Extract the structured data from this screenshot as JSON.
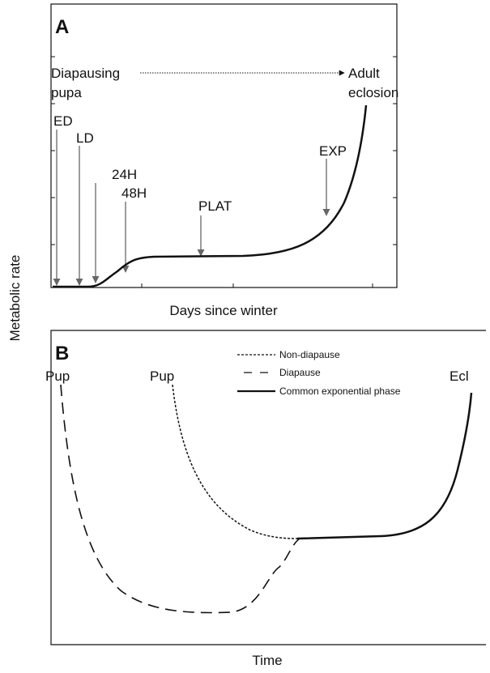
{
  "y_axis_label": "Metabolic rate",
  "panel_a": {
    "label": "A",
    "start_lines": [
      "Diapausing",
      "pupa"
    ],
    "end_lines": [
      "Adult",
      "eclosion"
    ],
    "markers": [
      "ED",
      "LD",
      "24H",
      "48H",
      "PLAT",
      "EXP"
    ],
    "x_axis_label": "Days since winter"
  },
  "panel_b": {
    "label": "B",
    "legend": [
      "Non-diapause",
      "Diapause",
      "Common exponential phase"
    ],
    "start_labels": [
      "Pup",
      "Pup"
    ],
    "end_label": "Ecl",
    "x_axis_label": "Time"
  }
}
